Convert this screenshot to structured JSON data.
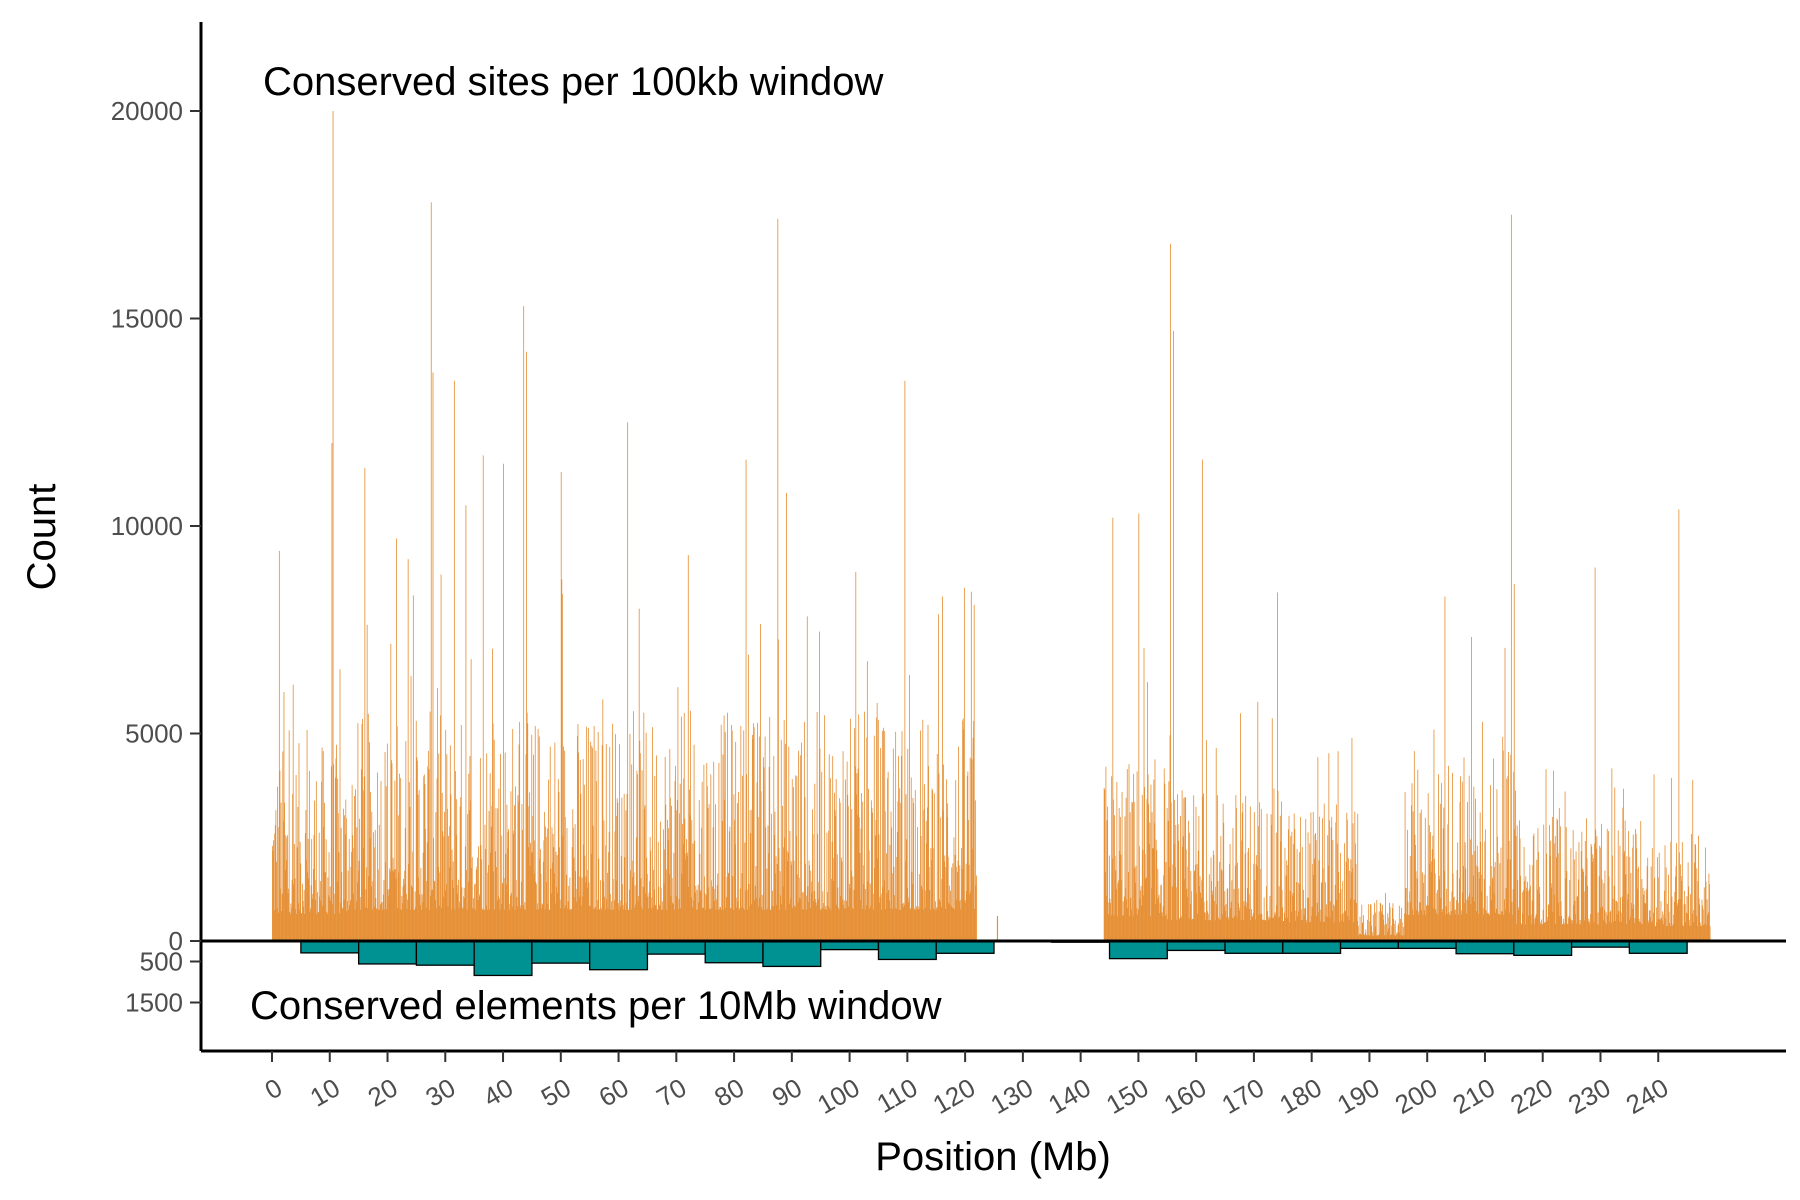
{
  "chart_data": {
    "type": "bar",
    "xlabel": "Position (Mb)",
    "ylabel": "Count",
    "annotations": {
      "top": "Conserved sites per 100kb window",
      "bottom": "Conserved elements per 10Mb window"
    },
    "x_ticks": [
      0,
      10,
      20,
      30,
      40,
      50,
      60,
      70,
      80,
      90,
      100,
      110,
      120,
      130,
      140,
      150,
      160,
      170,
      180,
      190,
      200,
      210,
      220,
      230,
      240
    ],
    "xlim": [
      -12.5,
      258
    ],
    "y_ticks_upper": [
      0,
      5000,
      10000,
      15000,
      20000
    ],
    "y_ticks_lower": [
      500,
      1500
    ],
    "ylim_upper": [
      0,
      22000
    ],
    "ylim_lower": [
      0,
      2700
    ],
    "grid": false,
    "colors": {
      "sites": "#E69138",
      "elements": "#009292",
      "element_outline": "#000000",
      "axis": "#000000"
    },
    "series": [
      {
        "label_key": "top",
        "bin_width_mb": 0.1,
        "regions": [
          {
            "start": 0.0,
            "end": 13.0,
            "level": 2600
          },
          {
            "start": 13.0,
            "end": 122.0,
            "level": 3000
          },
          {
            "start": 122.0,
            "end": 144.0,
            "level": 0
          },
          {
            "start": 144.0,
            "end": 155.0,
            "level": 2400
          },
          {
            "start": 155.0,
            "end": 175.0,
            "level": 2000
          },
          {
            "start": 175.0,
            "end": 188.0,
            "level": 1800
          },
          {
            "start": 188.0,
            "end": 196.0,
            "level": 500
          },
          {
            "start": 196.0,
            "end": 215.0,
            "level": 2500
          },
          {
            "start": 215.0,
            "end": 238.0,
            "level": 1600
          },
          {
            "start": 238.0,
            "end": 249.0,
            "level": 1400
          }
        ],
        "peaks": [
          {
            "x": 1.2,
            "y": 9400
          },
          {
            "x": 2.0,
            "y": 6000
          },
          {
            "x": 10.5,
            "y": 20000
          },
          {
            "x": 10.3,
            "y": 12000
          },
          {
            "x": 16.0,
            "y": 11400
          },
          {
            "x": 21.5,
            "y": 9700
          },
          {
            "x": 23.5,
            "y": 9200
          },
          {
            "x": 27.5,
            "y": 17800
          },
          {
            "x": 27.8,
            "y": 13700
          },
          {
            "x": 31.5,
            "y": 13500
          },
          {
            "x": 33.5,
            "y": 10500
          },
          {
            "x": 36.5,
            "y": 11700
          },
          {
            "x": 40.0,
            "y": 11500
          },
          {
            "x": 43.5,
            "y": 15300
          },
          {
            "x": 44.0,
            "y": 14200
          },
          {
            "x": 50.0,
            "y": 11300
          },
          {
            "x": 61.5,
            "y": 12500
          },
          {
            "x": 72.0,
            "y": 9300
          },
          {
            "x": 82.0,
            "y": 11600
          },
          {
            "x": 87.5,
            "y": 17400
          },
          {
            "x": 89.0,
            "y": 10800
          },
          {
            "x": 109.5,
            "y": 13500
          },
          {
            "x": 116.0,
            "y": 8300
          },
          {
            "x": 121.5,
            "y": 8100
          },
          {
            "x": 145.5,
            "y": 10200
          },
          {
            "x": 150.0,
            "y": 10300
          },
          {
            "x": 155.5,
            "y": 16800
          },
          {
            "x": 156.0,
            "y": 14700
          },
          {
            "x": 161.0,
            "y": 11600
          },
          {
            "x": 174.0,
            "y": 8400
          },
          {
            "x": 203.0,
            "y": 8300
          },
          {
            "x": 214.5,
            "y": 17500
          },
          {
            "x": 215.0,
            "y": 8600
          },
          {
            "x": 229.0,
            "y": 9000
          },
          {
            "x": 243.5,
            "y": 10400
          }
        ]
      },
      {
        "label_key": "bottom",
        "bin_width_mb": 10,
        "bins": [
          {
            "x": 10,
            "value": 290
          },
          {
            "x": 20,
            "value": 560
          },
          {
            "x": 30,
            "value": 590
          },
          {
            "x": 40,
            "value": 840
          },
          {
            "x": 50,
            "value": 540
          },
          {
            "x": 60,
            "value": 700
          },
          {
            "x": 70,
            "value": 320
          },
          {
            "x": 80,
            "value": 530
          },
          {
            "x": 90,
            "value": 620
          },
          {
            "x": 100,
            "value": 210
          },
          {
            "x": 110,
            "value": 450
          },
          {
            "x": 120,
            "value": 300
          },
          {
            "x": 140,
            "value": 30
          },
          {
            "x": 150,
            "value": 430
          },
          {
            "x": 160,
            "value": 230
          },
          {
            "x": 170,
            "value": 300
          },
          {
            "x": 180,
            "value": 300
          },
          {
            "x": 190,
            "value": 180
          },
          {
            "x": 200,
            "value": 180
          },
          {
            "x": 210,
            "value": 310
          },
          {
            "x": 220,
            "value": 350
          },
          {
            "x": 230,
            "value": 150
          },
          {
            "x": 240,
            "value": 300
          }
        ]
      }
    ]
  }
}
